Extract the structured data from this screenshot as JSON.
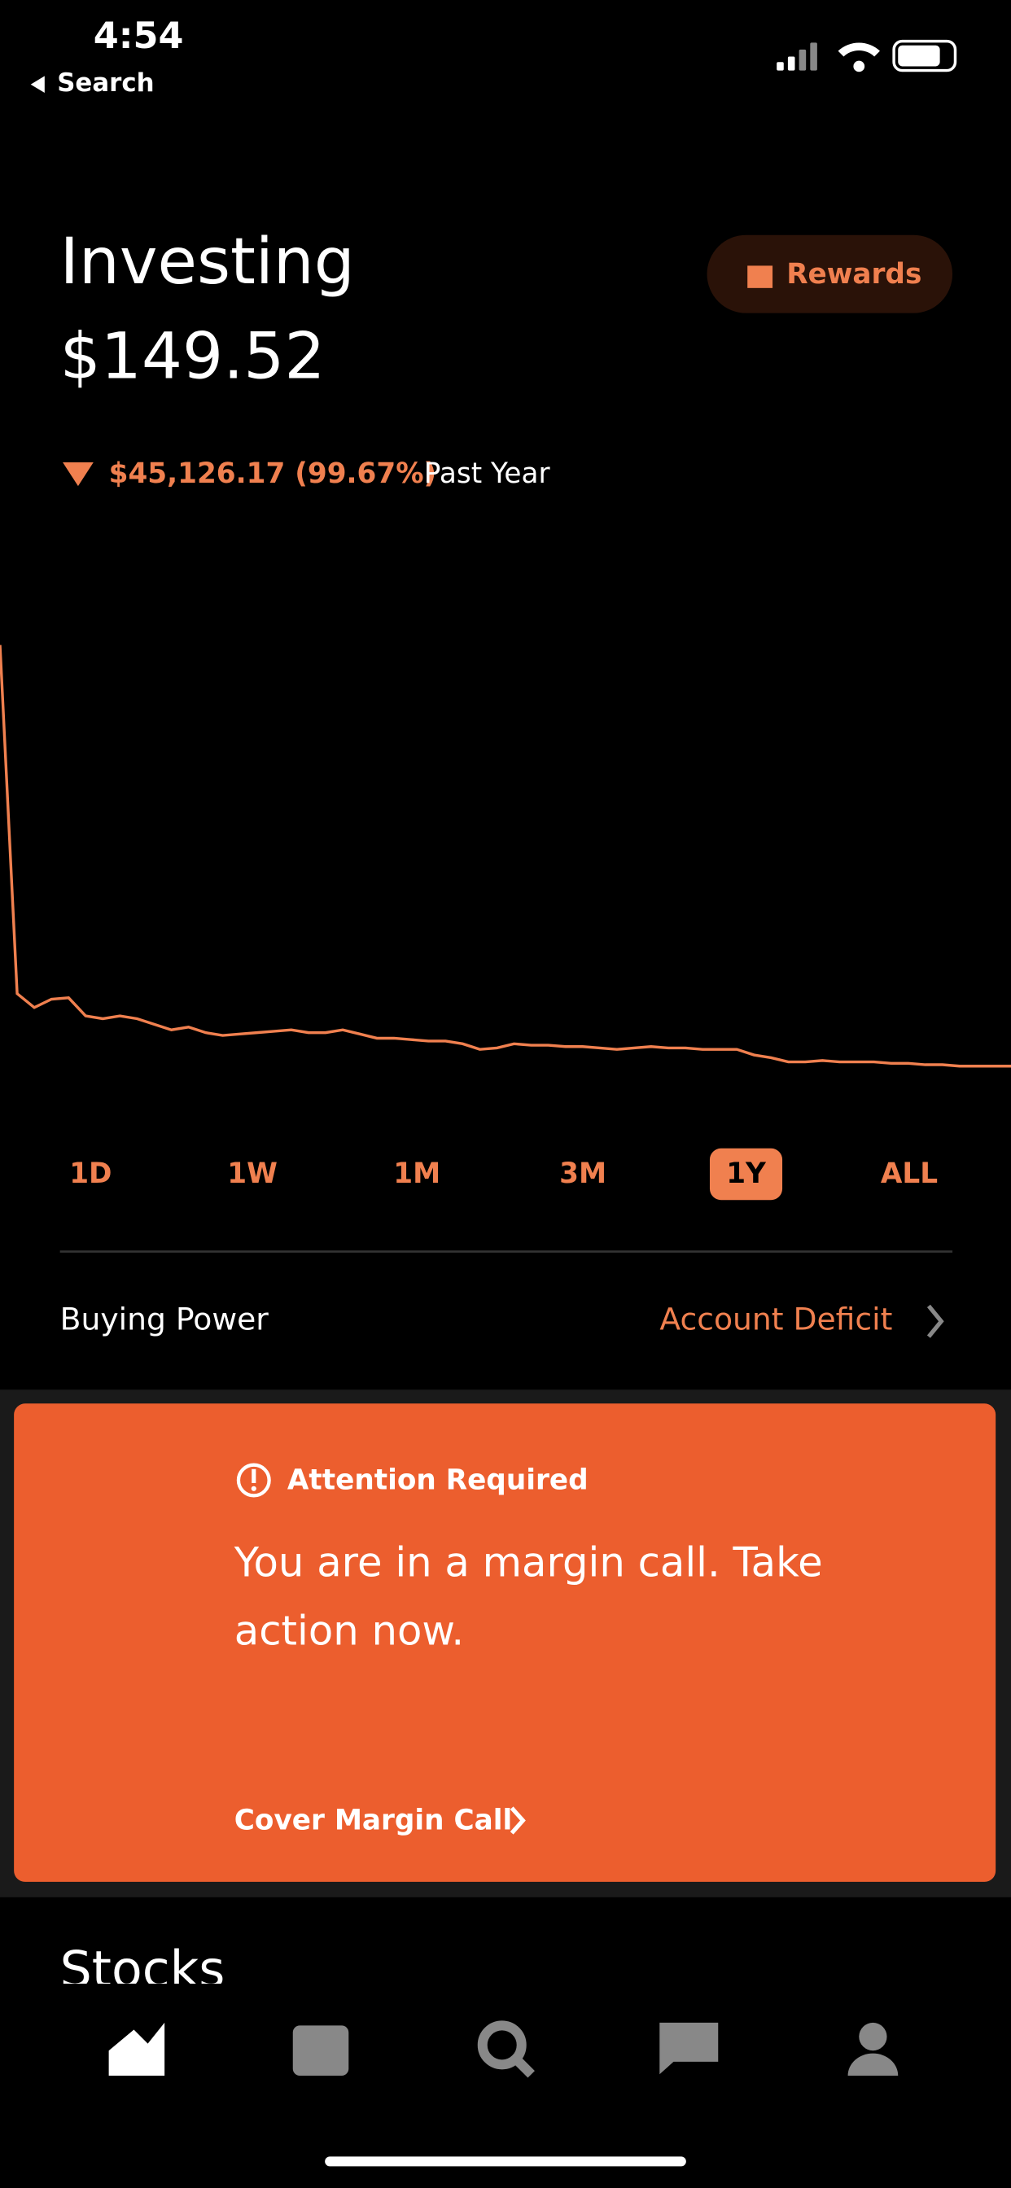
{
  "status": {
    "time": "4:54",
    "back": "Search"
  },
  "header": {
    "title": "Investing",
    "balance": "$149.52",
    "rewards": "Rewards"
  },
  "change": {
    "amount": "$45,126.17 (99.67%)",
    "period": "Past Year"
  },
  "chart": {
    "values": [
      45276,
      7919,
      6425,
      7321,
      7471,
      5529,
      5230,
      5529,
      5230,
      4632,
      4034,
      4333,
      3736,
      3436,
      3586,
      3736,
      3885,
      4034,
      3736,
      3736,
      4034,
      3586,
      3138,
      3138,
      2988,
      2839,
      2839,
      2540,
      1943,
      2092,
      2540,
      2391,
      2391,
      2242,
      2242,
      2092,
      1943,
      2092,
      2242,
      2092,
      2092,
      1943,
      1943,
      1943,
      1345,
      1046,
      598,
      598,
      748,
      598,
      598,
      598,
      448,
      448,
      299,
      299,
      150,
      150,
      150,
      149.52
    ],
    "color": "#f0804f"
  },
  "ranges": {
    "items": [
      "1D",
      "1W",
      "1M",
      "3M",
      "1Y",
      "ALL"
    ],
    "selected": 4
  },
  "buying_power": {
    "label": "Buying Power",
    "value": "Account Deficit"
  },
  "alert": {
    "title": "Attention Required",
    "message": [
      "You are in a margin call. Take",
      "action now."
    ],
    "action": "Cover Margin Call"
  },
  "section": {
    "title": "Stocks"
  }
}
